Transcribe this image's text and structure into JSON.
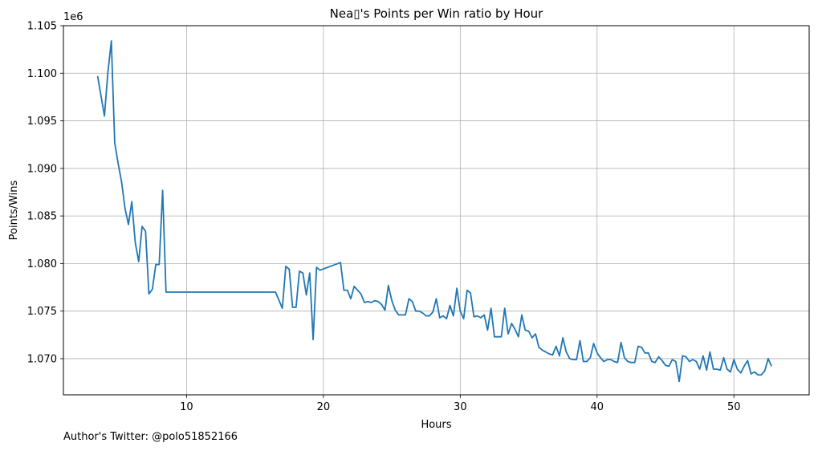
{
  "chart_data": {
    "type": "line",
    "title": "Nea▯'s Points per Win ratio by Hour",
    "xlabel": "Hours",
    "ylabel": "Points/Wins",
    "y_offset_label": "1e6",
    "xlim": [
      1,
      55.5
    ],
    "ylim": [
      1.0662,
      1.105
    ],
    "x_ticks": [
      10,
      20,
      30,
      40,
      50
    ],
    "x_tick_labels": [
      "10",
      "20",
      "30",
      "40",
      "50"
    ],
    "y_ticks": [
      1.07,
      1.075,
      1.08,
      1.085,
      1.09,
      1.095,
      1.1,
      1.105
    ],
    "y_tick_labels": [
      "1.070",
      "1.075",
      "1.080",
      "1.085",
      "1.090",
      "1.095",
      "1.100",
      "1.105"
    ],
    "grid": true,
    "line_color": "#1f77b4",
    "series": [
      {
        "x": [
          3.5,
          4.0,
          4.25,
          4.5,
          4.75,
          5.0,
          5.25,
          5.5,
          5.75,
          6.0,
          6.25,
          6.5,
          6.75,
          7.0,
          7.25,
          7.5,
          7.75,
          8.0,
          8.25,
          8.5,
          16.5,
          17.0,
          17.25,
          17.5,
          17.75,
          18.0,
          18.25,
          18.5,
          18.75,
          19.0,
          19.25,
          19.5,
          19.75,
          21.25,
          21.5,
          21.75,
          22.0,
          22.25,
          22.5,
          22.75,
          23.0,
          23.25,
          23.5,
          23.75,
          24.0,
          24.25,
          24.5,
          24.75,
          25.0,
          25.25,
          25.5,
          25.75,
          26.0,
          26.25,
          26.5,
          26.75,
          27.0,
          27.25,
          27.5,
          27.75,
          28.0,
          28.25,
          28.5,
          28.75,
          29.0,
          29.25,
          29.5,
          29.75,
          30.0,
          30.25,
          30.5,
          30.75,
          31.0,
          31.25,
          31.5,
          31.75,
          32.0,
          32.25,
          32.5,
          32.75,
          33.0,
          33.25,
          33.5,
          33.75,
          34.0,
          34.25,
          34.5,
          34.75,
          35.0,
          35.25,
          35.5,
          35.75,
          36.0,
          36.25,
          36.5,
          36.75,
          37.0,
          37.25,
          37.5,
          37.75,
          38.0,
          38.25,
          38.5,
          38.75,
          39.0,
          39.25,
          39.5,
          39.75,
          40.0,
          40.25,
          40.5,
          40.75,
          41.0,
          41.25,
          41.5,
          41.75,
          42.0,
          42.25,
          42.5,
          42.75,
          43.0,
          43.25,
          43.5,
          43.75,
          44.0,
          44.25,
          44.5,
          44.75,
          45.0,
          45.25,
          45.5,
          45.75,
          46.0,
          46.25,
          46.5,
          46.75,
          47.0,
          47.25,
          47.5,
          47.75,
          48.0,
          48.25,
          48.5,
          48.75,
          49.0,
          49.25,
          49.5,
          49.75,
          50.0,
          50.25,
          50.5,
          50.75,
          51.0,
          51.25,
          51.5,
          51.75,
          52.0,
          52.25,
          52.5,
          52.75
        ],
        "y": [
          1.0997,
          1.0955,
          1.1001,
          1.1034,
          1.0927,
          1.0905,
          1.0886,
          1.0858,
          1.0841,
          1.0865,
          1.0822,
          1.0802,
          1.0839,
          1.0834,
          1.0768,
          1.0773,
          1.0799,
          1.0799,
          1.0877,
          1.077,
          1.077,
          1.0753,
          1.0797,
          1.0794,
          1.0754,
          1.0754,
          1.0792,
          1.079,
          1.0767,
          1.079,
          1.072,
          1.0796,
          1.0793,
          1.0801,
          1.0772,
          1.0772,
          1.0763,
          1.0776,
          1.0772,
          1.0768,
          1.0759,
          1.076,
          1.0759,
          1.0761,
          1.076,
          1.0757,
          1.0751,
          1.0777,
          1.0761,
          1.0751,
          1.0746,
          1.0746,
          1.0746,
          1.0763,
          1.076,
          1.075,
          1.075,
          1.0748,
          1.0745,
          1.0745,
          1.0749,
          1.0763,
          1.0743,
          1.0745,
          1.0742,
          1.0756,
          1.0745,
          1.0774,
          1.075,
          1.0742,
          1.0772,
          1.0769,
          1.0744,
          1.0745,
          1.0743,
          1.0746,
          1.073,
          1.0753,
          1.0723,
          1.0723,
          1.0723,
          1.0753,
          1.0726,
          1.0737,
          1.0731,
          1.0723,
          1.0746,
          1.073,
          1.0729,
          1.0722,
          1.0726,
          1.0712,
          1.0709,
          1.0707,
          1.0705,
          1.0704,
          1.0713,
          1.0703,
          1.0722,
          1.0707,
          1.07,
          1.0699,
          1.0699,
          1.0719,
          1.0697,
          1.0697,
          1.0701,
          1.0716,
          1.0706,
          1.0701,
          1.0697,
          1.0699,
          1.0699,
          1.0697,
          1.0696,
          1.0717,
          1.0701,
          1.0697,
          1.0696,
          1.0696,
          1.0713,
          1.0712,
          1.0706,
          1.0706,
          1.0697,
          1.0696,
          1.0702,
          1.0698,
          1.0693,
          1.0692,
          1.0699,
          1.0697,
          1.0676,
          1.0703,
          1.0702,
          1.0697,
          1.0699,
          1.0697,
          1.0689,
          1.0703,
          1.0688,
          1.0707,
          1.0689,
          1.0689,
          1.0688,
          1.0701,
          1.0689,
          1.0686,
          1.0699,
          1.0689,
          1.0685,
          1.0692,
          1.0698,
          1.0684,
          1.0686,
          1.0683,
          1.0683,
          1.0687,
          1.07,
          1.0692
        ]
      }
    ]
  },
  "footer": {
    "credit": "Author's Twitter: @polo51852166"
  }
}
